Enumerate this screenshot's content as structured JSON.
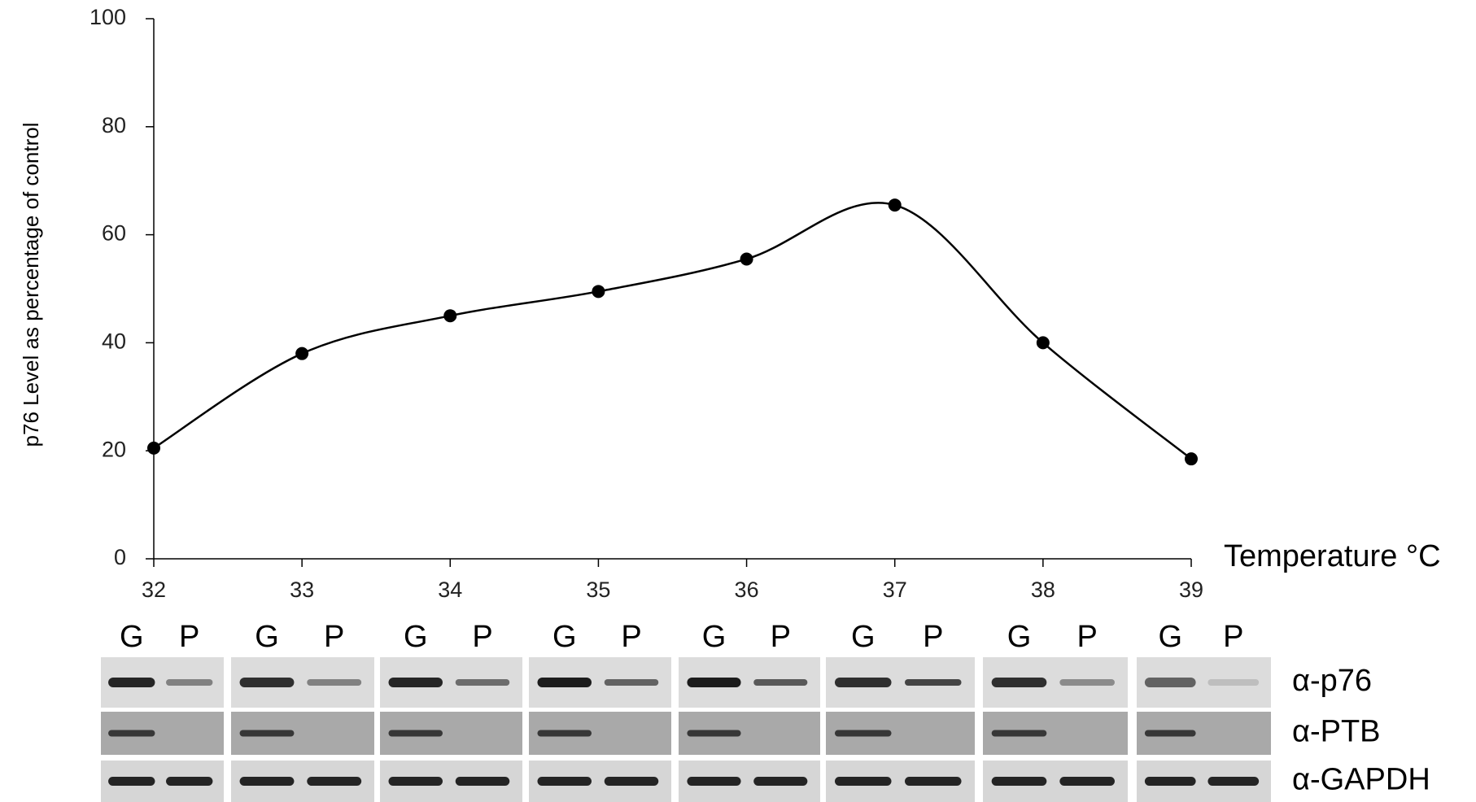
{
  "chart_data": {
    "type": "line",
    "axis_label_y": "p76 Level as percentage of control",
    "axis_label_x": "Temperature °C",
    "x": [
      32,
      33,
      34,
      35,
      36,
      37,
      38,
      39
    ],
    "series": [
      {
        "color": "#000000",
        "values": [
          20.5,
          38,
          45,
          49.5,
          55.5,
          65.5,
          40,
          18.5
        ]
      }
    ],
    "xlim": [
      32,
      39
    ],
    "xticks": [
      32,
      33,
      34,
      35,
      36,
      37,
      38,
      39
    ],
    "ylim": [
      0,
      100
    ],
    "yticks": [
      0,
      20,
      40,
      60,
      80,
      100
    ],
    "grid": false,
    "smooth": true
  },
  "blot": {
    "lane_labels": [
      [
        "G",
        "P"
      ],
      [
        "G",
        "P"
      ],
      [
        "G",
        "P"
      ],
      [
        "G",
        "P"
      ],
      [
        "G",
        "P"
      ],
      [
        "G",
        "P"
      ],
      [
        "G",
        "P"
      ],
      [
        "G",
        "P"
      ]
    ],
    "rows": [
      "α-p76",
      "α-PTB",
      "α-GAPDH"
    ]
  }
}
